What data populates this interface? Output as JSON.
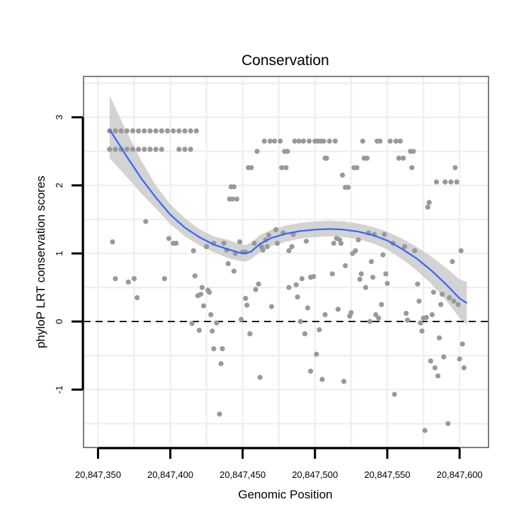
{
  "chart_data": {
    "type": "scatter",
    "title": "Conservation",
    "xlabel": "Genomic Position",
    "ylabel": "phyloP LRT conservation scores",
    "xlim": [
      20847340,
      20847620
    ],
    "ylim": [
      -1.85,
      3.6
    ],
    "x_ticks": [
      20847350,
      20847400,
      20847450,
      20847500,
      20847550,
      20847600
    ],
    "x_tick_labels": [
      "20,847,350",
      "20,847,400",
      "20,847,450",
      "20,847,500",
      "20,847,550",
      "20,847,600"
    ],
    "y_ticks": [
      -1,
      0,
      1,
      2,
      3
    ],
    "y_tick_labels": [
      "-1",
      "0",
      "1",
      "2",
      "3"
    ],
    "grid": true,
    "reference_line": {
      "y": 0,
      "style": "dashed"
    },
    "colors": {
      "points": "#999999",
      "smooth": "#3366ff",
      "band": "#c8c8c8",
      "grid": "#f0f0f0",
      "frame": "#808080"
    },
    "series": [
      {
        "kind": "points",
        "points": [
          [
            20847358,
            2.53
          ],
          [
            20847358,
            2.8
          ],
          [
            20847360,
            1.17
          ],
          [
            20847362,
            0.63
          ],
          [
            20847362,
            2.53
          ],
          [
            20847362,
            2.8
          ],
          [
            20847366,
            2.53
          ],
          [
            20847366,
            2.8
          ],
          [
            20847370,
            2.53
          ],
          [
            20847370,
            2.8
          ],
          [
            20847371,
            0.58
          ],
          [
            20847374,
            2.53
          ],
          [
            20847374,
            2.8
          ],
          [
            20847375,
            0.63
          ],
          [
            20847377,
            0.35
          ],
          [
            20847378,
            2.53
          ],
          [
            20847378,
            2.8
          ],
          [
            20847382,
            2.53
          ],
          [
            20847382,
            2.8
          ],
          [
            20847383,
            1.47
          ],
          [
            20847386,
            2.53
          ],
          [
            20847386,
            2.8
          ],
          [
            20847390,
            2.53
          ],
          [
            20847390,
            2.8
          ],
          [
            20847394,
            2.53
          ],
          [
            20847394,
            2.8
          ],
          [
            20847396,
            0.63
          ],
          [
            20847398,
            2.8
          ],
          [
            20847399,
            1.22
          ],
          [
            20847402,
            2.8
          ],
          [
            20847402,
            1.15
          ],
          [
            20847404,
            1.15
          ],
          [
            20847406,
            2.53
          ],
          [
            20847406,
            2.8
          ],
          [
            20847410,
            2.53
          ],
          [
            20847410,
            2.8
          ],
          [
            20847414,
            2.53
          ],
          [
            20847414,
            2.8
          ],
          [
            20847416,
            1.04
          ],
          [
            20847417,
            0.67
          ],
          [
            20847418,
            2.8
          ],
          [
            20847415,
            -0.03
          ],
          [
            20847419,
            0.38
          ],
          [
            20847420,
            -0.13
          ],
          [
            20847421,
            0.4
          ],
          [
            20847422,
            0.5
          ],
          [
            20847423,
            0.23
          ],
          [
            20847425,
            1.1
          ],
          [
            20847426,
            0.46
          ],
          [
            20847427,
            0.43
          ],
          [
            20847428,
            0.1
          ],
          [
            20847429,
            -0.14
          ],
          [
            20847430,
            -0.4
          ],
          [
            20847430,
            1.15
          ],
          [
            20847432,
            -0.02
          ],
          [
            20847434,
            -1.36
          ],
          [
            20847435,
            -0.62
          ],
          [
            20847436,
            -0.4
          ],
          [
            20847437,
            1.15
          ],
          [
            20847439,
            1.05
          ],
          [
            20847440,
            0.85
          ],
          [
            20847441,
            1.8
          ],
          [
            20847442,
            1.98
          ],
          [
            20847443,
            1.8
          ],
          [
            20847444,
            0.74
          ],
          [
            20847444,
            1.98
          ],
          [
            20847445,
            1.0
          ],
          [
            20847446,
            1.8
          ],
          [
            20847448,
            1.17
          ],
          [
            20847449,
            0.03
          ],
          [
            20847450,
            1.02
          ],
          [
            20847452,
            0.34
          ],
          [
            20847452,
            1.02
          ],
          [
            20847453,
            0.24
          ],
          [
            20847454,
            2.26
          ],
          [
            20847455,
            -0.18
          ],
          [
            20847456,
            2.26
          ],
          [
            20847458,
            1.15
          ],
          [
            20847459,
            0.47
          ],
          [
            20847460,
            2.5
          ],
          [
            20847461,
            0.55
          ],
          [
            20847462,
            -0.82
          ],
          [
            20847463,
            1.1
          ],
          [
            20847464,
            1.05
          ],
          [
            20847465,
            2.65
          ],
          [
            20847466,
            1.2
          ],
          [
            20847467,
            1.1
          ],
          [
            20847468,
            1.27
          ],
          [
            20847469,
            2.65
          ],
          [
            20847470,
            0.22
          ],
          [
            20847472,
            2.65
          ],
          [
            20847473,
            1.35
          ],
          [
            20847474,
            1.15
          ],
          [
            20847476,
            2.65
          ],
          [
            20847477,
            2.26
          ],
          [
            20847478,
            1.3
          ],
          [
            20847479,
            2.5
          ],
          [
            20847480,
            2.26
          ],
          [
            20847481,
            2.5
          ],
          [
            20847482,
            1.04
          ],
          [
            20847482,
            0.5
          ],
          [
            20847484,
            1.1
          ],
          [
            20847485,
            1.28
          ],
          [
            20847486,
            2.65
          ],
          [
            20847487,
            0.54
          ],
          [
            20847488,
            0.36
          ],
          [
            20847489,
            2.65
          ],
          [
            20847490,
            0.0
          ],
          [
            20847491,
            0.63
          ],
          [
            20847492,
            2.65
          ],
          [
            20847493,
            -0.18
          ],
          [
            20847494,
            1.18
          ],
          [
            20847495,
            0.2
          ],
          [
            20847496,
            2.65
          ],
          [
            20847497,
            0.65
          ],
          [
            20847497,
            -0.73
          ],
          [
            20847499,
            0.66
          ],
          [
            20847500,
            2.65
          ],
          [
            20847501,
            -0.48
          ],
          [
            20847502,
            2.65
          ],
          [
            20847503,
            -0.12
          ],
          [
            20847504,
            2.65
          ],
          [
            20847505,
            -0.85
          ],
          [
            20847506,
            2.65
          ],
          [
            20847507,
            2.4
          ],
          [
            20847507,
            0.1
          ],
          [
            20847508,
            2.4
          ],
          [
            20847510,
            2.65
          ],
          [
            20847512,
            0.7
          ],
          [
            20847513,
            1.15
          ],
          [
            20847514,
            2.65
          ],
          [
            20847515,
            1.22
          ],
          [
            20847516,
            0.18
          ],
          [
            20847517,
            1.2
          ],
          [
            20847518,
            1.15
          ],
          [
            20847519,
            2.15
          ],
          [
            20847520,
            -0.88
          ],
          [
            20847521,
            1.97
          ],
          [
            20847521,
            0.82
          ],
          [
            20847523,
            1.97
          ],
          [
            20847524,
            0.08
          ],
          [
            20847525,
            0.13
          ],
          [
            20847526,
            1.0
          ],
          [
            20847527,
            2.26
          ],
          [
            20847528,
            1.04
          ],
          [
            20847529,
            2.26
          ],
          [
            20847530,
            1.2
          ],
          [
            20847531,
            0.62
          ],
          [
            20847532,
            0.7
          ],
          [
            20847533,
            2.65
          ],
          [
            20847534,
            2.4
          ],
          [
            20847535,
            0.5
          ],
          [
            20847536,
            2.4
          ],
          [
            20847537,
            1.3
          ],
          [
            20847538,
            0.0
          ],
          [
            20847539,
            0.88
          ],
          [
            20847540,
            0.65
          ],
          [
            20847541,
            1.28
          ],
          [
            20847542,
            0.1
          ],
          [
            20847543,
            2.65
          ],
          [
            20847544,
            0.05
          ],
          [
            20847545,
            2.65
          ],
          [
            20847546,
            0.25
          ],
          [
            20847547,
            0.98
          ],
          [
            20847548,
            1.28
          ],
          [
            20847549,
            0.7
          ],
          [
            20847550,
            0.56
          ],
          [
            20847552,
            2.65
          ],
          [
            20847554,
            1.15
          ],
          [
            20847555,
            -1.07
          ],
          [
            20847556,
            2.65
          ],
          [
            20847558,
            2.4
          ],
          [
            20847559,
            2.65
          ],
          [
            20847561,
            2.4
          ],
          [
            20847562,
            1.1
          ],
          [
            20847563,
            0.12
          ],
          [
            20847564,
            0.02
          ],
          [
            20847566,
            2.5
          ],
          [
            20847567,
            2.26
          ],
          [
            20847568,
            2.5
          ],
          [
            20847569,
            1.04
          ],
          [
            20847571,
            0.55
          ],
          [
            20847572,
            0.3
          ],
          [
            20847573,
            -0.02
          ],
          [
            20847574,
            -0.14
          ],
          [
            20847575,
            0.05
          ],
          [
            20847576,
            -1.6
          ],
          [
            20847577,
            0.06
          ],
          [
            20847578,
            1.68
          ],
          [
            20847579,
            1.75
          ],
          [
            20847580,
            -0.58
          ],
          [
            20847581,
            0.1
          ],
          [
            20847582,
            0.43
          ],
          [
            20847583,
            -0.68
          ],
          [
            20847584,
            2.05
          ],
          [
            20847585,
            -0.8
          ],
          [
            20847586,
            -0.24
          ],
          [
            20847587,
            0.25
          ],
          [
            20847588,
            0.4
          ],
          [
            20847589,
            -0.52
          ],
          [
            20847590,
            2.05
          ],
          [
            20847592,
            -1.5
          ],
          [
            20847593,
            0.35
          ],
          [
            20847594,
            2.05
          ],
          [
            20847595,
            0.88
          ],
          [
            20847596,
            0.3
          ],
          [
            20847597,
            2.26
          ],
          [
            20847598,
            2.05
          ],
          [
            20847599,
            0.25
          ],
          [
            20847600,
            -0.55
          ],
          [
            20847601,
            1.04
          ],
          [
            20847602,
            -0.33
          ],
          [
            20847603,
            -0.68
          ]
        ]
      },
      {
        "kind": "smooth",
        "x": [
          20847358,
          20847370,
          20847380,
          20847390,
          20847400,
          20847410,
          20847420,
          20847430,
          20847440,
          20847448,
          20847452,
          20847456,
          20847462,
          20847470,
          20847480,
          20847490,
          20847500,
          20847510,
          20847520,
          20847530,
          20847540,
          20847550,
          20847560,
          20847570,
          20847580,
          20847590,
          20847600,
          20847605
        ],
        "y": [
          2.82,
          2.42,
          2.1,
          1.82,
          1.57,
          1.38,
          1.24,
          1.13,
          1.06,
          1.01,
          1.0,
          1.03,
          1.14,
          1.23,
          1.29,
          1.33,
          1.35,
          1.36,
          1.35,
          1.32,
          1.27,
          1.19,
          1.07,
          0.93,
          0.76,
          0.56,
          0.34,
          0.27
        ],
        "lower": [
          2.4,
          2.12,
          1.88,
          1.66,
          1.43,
          1.25,
          1.12,
          1.02,
          0.93,
          0.89,
          0.88,
          0.92,
          1.02,
          1.11,
          1.17,
          1.22,
          1.24,
          1.25,
          1.24,
          1.21,
          1.15,
          1.06,
          0.92,
          0.76,
          0.56,
          0.33,
          0.05,
          -0.05
        ],
        "upper": [
          3.32,
          2.78,
          2.36,
          2.0,
          1.72,
          1.52,
          1.36,
          1.25,
          1.2,
          1.14,
          1.12,
          1.16,
          1.27,
          1.35,
          1.41,
          1.45,
          1.47,
          1.48,
          1.47,
          1.44,
          1.39,
          1.32,
          1.22,
          1.1,
          0.96,
          0.8,
          0.62,
          0.58
        ]
      }
    ]
  }
}
